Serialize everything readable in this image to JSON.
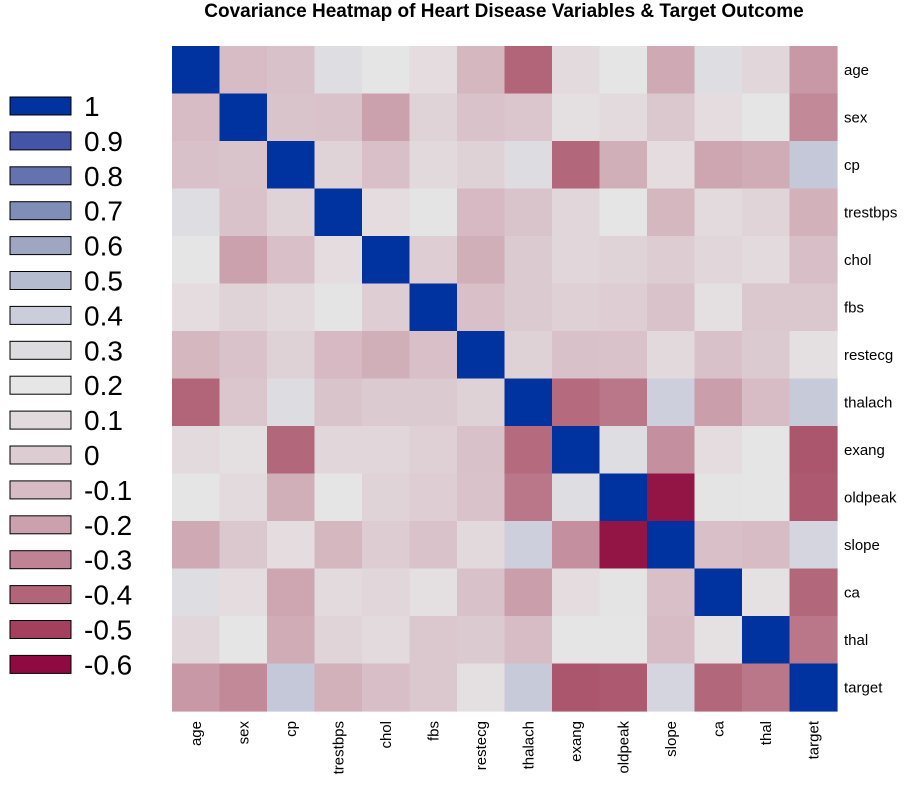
{
  "chart_data": {
    "type": "heatmap",
    "title": "Covariance Heatmap of Heart Disease Variables & Target Outcome",
    "variables": [
      "age",
      "sex",
      "cp",
      "trestbps",
      "chol",
      "fbs",
      "restecg",
      "thalach",
      "exang",
      "oldpeak",
      "slope",
      "ca",
      "thal",
      "target"
    ],
    "matrix": [
      [
        1.0,
        -0.1,
        -0.07,
        0.28,
        0.21,
        0.12,
        -0.12,
        -0.4,
        0.1,
        0.21,
        -0.17,
        0.28,
        0.07,
        -0.23
      ],
      [
        -0.1,
        1.0,
        -0.05,
        -0.06,
        -0.2,
        0.05,
        -0.06,
        -0.04,
        0.14,
        0.1,
        -0.03,
        0.12,
        0.21,
        -0.28
      ],
      [
        -0.07,
        -0.05,
        1.0,
        0.05,
        -0.08,
        0.09,
        0.04,
        0.3,
        -0.39,
        -0.15,
        0.12,
        -0.18,
        -0.16,
        0.43
      ],
      [
        0.28,
        -0.06,
        0.05,
        1.0,
        0.12,
        0.18,
        -0.11,
        -0.05,
        0.07,
        0.19,
        -0.12,
        0.1,
        0.06,
        -0.14
      ],
      [
        0.21,
        -0.2,
        -0.08,
        0.12,
        1.0,
        0.01,
        -0.15,
        -0.01,
        0.07,
        0.05,
        -0.0,
        0.07,
        0.1,
        -0.09
      ],
      [
        0.12,
        0.05,
        0.09,
        0.18,
        0.01,
        1.0,
        -0.08,
        -0.01,
        0.03,
        0.01,
        -0.06,
        0.14,
        -0.03,
        -0.03
      ],
      [
        -0.12,
        -0.06,
        0.04,
        -0.11,
        -0.15,
        -0.08,
        1.0,
        0.04,
        -0.07,
        -0.06,
        0.09,
        -0.07,
        -0.01,
        0.14
      ],
      [
        -0.4,
        -0.04,
        0.3,
        -0.05,
        -0.01,
        -0.01,
        0.04,
        1.0,
        -0.38,
        -0.34,
        0.39,
        -0.21,
        -0.1,
        0.42
      ],
      [
        0.1,
        0.14,
        -0.39,
        0.07,
        0.07,
        0.03,
        -0.07,
        -0.38,
        1.0,
        0.29,
        -0.26,
        0.12,
        0.21,
        -0.44
      ],
      [
        0.21,
        0.1,
        -0.15,
        0.19,
        0.05,
        0.01,
        -0.06,
        -0.34,
        0.29,
        1.0,
        -0.58,
        0.22,
        0.21,
        -0.43
      ],
      [
        -0.17,
        -0.03,
        0.12,
        -0.12,
        -0.0,
        -0.06,
        0.09,
        0.39,
        -0.26,
        -0.58,
        1.0,
        -0.08,
        -0.1,
        0.35
      ],
      [
        0.28,
        0.12,
        -0.18,
        0.1,
        0.07,
        0.14,
        -0.07,
        -0.21,
        0.12,
        0.22,
        -0.08,
        1.0,
        0.15,
        -0.39
      ],
      [
        0.07,
        0.21,
        -0.16,
        0.06,
        0.1,
        -0.03,
        -0.01,
        -0.1,
        0.21,
        0.21,
        -0.1,
        0.15,
        1.0,
        -0.34
      ],
      [
        -0.23,
        -0.28,
        0.43,
        -0.14,
        -0.09,
        -0.03,
        0.14,
        0.42,
        -0.44,
        -0.43,
        0.35,
        -0.39,
        -0.34,
        1.0
      ]
    ],
    "legend": {
      "labels": [
        "1",
        "0.9",
        "0.8",
        "0.7",
        "0.6",
        "0.5",
        "0.4",
        "0.3",
        "0.2",
        "0.1",
        "0",
        "-0.1",
        "-0.2",
        "-0.3",
        "-0.4",
        "-0.5",
        "-0.6"
      ],
      "values": [
        1.0,
        0.9,
        0.8,
        0.7,
        0.6,
        0.5,
        0.4,
        0.3,
        0.2,
        0.1,
        0.0,
        -0.1,
        -0.2,
        -0.3,
        -0.4,
        -0.5,
        -0.6
      ],
      "colors": [
        "#0033A0",
        "#4455A8",
        "#6473B0",
        "#808DB7",
        "#9EA6C2",
        "#B6BCD0",
        "#CBCDDB",
        "#DCDCE1",
        "#E6E6E6",
        "#E3DADD",
        "#DDCCD2",
        "#D7BCC5",
        "#CBA1AD",
        "#C08394",
        "#B26478",
        "#A2405E",
        "#8E0A40"
      ],
      "placement": "left"
    },
    "colors": {
      "positive": "#0033A0",
      "neutral": "#E6E6E6",
      "negative": "#8E0A40"
    }
  }
}
